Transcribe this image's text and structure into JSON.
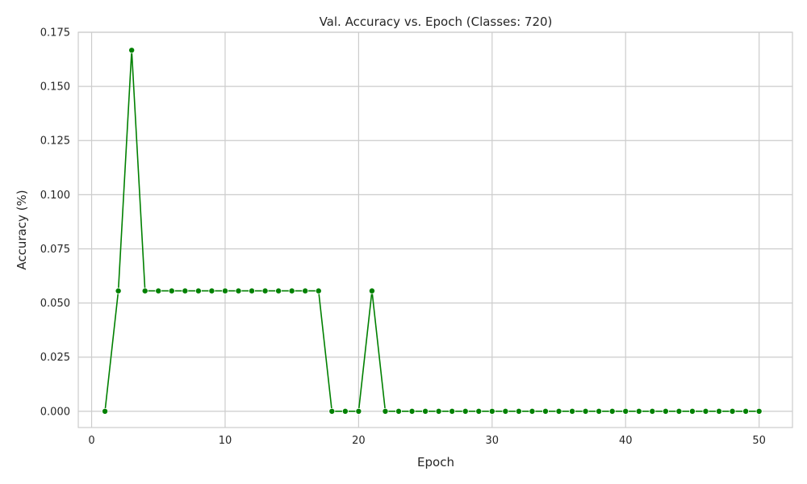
{
  "chart_data": {
    "type": "line",
    "title": "Val. Accuracy vs. Epoch (Classes: 720)",
    "xlabel": "Epoch",
    "ylabel": "Accuracy (%)",
    "xlim": [
      -1,
      52.5
    ],
    "ylim": [
      -0.0075,
      0.175
    ],
    "x_ticks": [
      0,
      10,
      20,
      30,
      40,
      50
    ],
    "y_ticks": [
      0.0,
      0.025,
      0.05,
      0.075,
      0.1,
      0.125,
      0.15,
      0.175
    ],
    "y_tick_labels": [
      "0.000",
      "0.025",
      "0.050",
      "0.075",
      "0.100",
      "0.125",
      "0.150",
      "0.175"
    ],
    "grid": true,
    "series": [
      {
        "color": "#008000",
        "marker": "circle",
        "x": [
          1,
          2,
          3,
          4,
          5,
          6,
          7,
          8,
          9,
          10,
          11,
          12,
          13,
          14,
          15,
          16,
          17,
          18,
          19,
          20,
          21,
          22,
          23,
          24,
          25,
          26,
          27,
          28,
          29,
          30,
          31,
          32,
          33,
          34,
          35,
          36,
          37,
          38,
          39,
          40,
          41,
          42,
          43,
          44,
          45,
          46,
          47,
          48,
          49,
          50
        ],
        "values": [
          0.0,
          0.0556,
          0.1667,
          0.0556,
          0.0556,
          0.0556,
          0.0556,
          0.0556,
          0.0556,
          0.0556,
          0.0556,
          0.0556,
          0.0556,
          0.0556,
          0.0556,
          0.0556,
          0.0556,
          0.0,
          0.0,
          0.0,
          0.0556,
          0.0,
          0.0,
          0.0,
          0.0,
          0.0,
          0.0,
          0.0,
          0.0,
          0.0,
          0.0,
          0.0,
          0.0,
          0.0,
          0.0,
          0.0,
          0.0,
          0.0,
          0.0,
          0.0,
          0.0,
          0.0,
          0.0,
          0.0,
          0.0,
          0.0,
          0.0,
          0.0,
          0.0,
          0.0
        ]
      }
    ]
  }
}
